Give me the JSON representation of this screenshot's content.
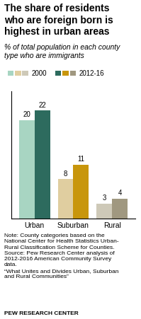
{
  "chart_data": {
    "type": "bar",
    "title": "The share of residents\nwho are foreign born is\nhighest in urban areas",
    "subtitle": "% of total population in each county\ntype who are immigrants",
    "categories": [
      "Urban",
      "Suburban",
      "Rural"
    ],
    "series": [
      {
        "name": "2000",
        "colors": [
          "#a8d5c2",
          "#e0cea0",
          "#cec9b8"
        ],
        "values": [
          20,
          8,
          3
        ]
      },
      {
        "name": "2012-16",
        "colors": [
          "#2d6b5e",
          "#c8960c",
          "#a09880"
        ],
        "values": [
          22,
          11,
          4
        ]
      }
    ],
    "ylim": [
      0,
      26
    ],
    "yticks": [],
    "tick_labels": "x",
    "data_labels": true,
    "legend": "upper left",
    "annotations": [
      "Note: County categories based on the\nNational Center for Health Statistics Urban-\nRural Classification Scheme for Counties.\nSource: Pew Research Center analysis of\n2012-2016 American Community Survey\ndata.\n“What Unites and Divides Urban, Suburban\nand Rural Communities”",
      "PEW RESEARCH CENTER"
    ]
  }
}
